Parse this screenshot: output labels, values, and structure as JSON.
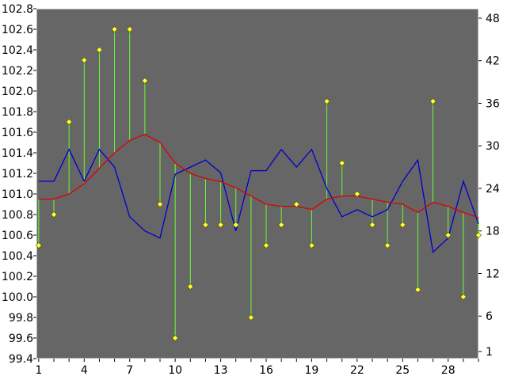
{
  "chart_data": {
    "type": "line",
    "title": "",
    "xlabel": "",
    "ylabel": "",
    "background_color": "#666666",
    "plot_border_color": "#ffffff",
    "grid": false,
    "legend": "none",
    "x": [
      1,
      2,
      3,
      4,
      5,
      6,
      7,
      8,
      9,
      10,
      11,
      12,
      13,
      14,
      15,
      16,
      17,
      18,
      19,
      20,
      21,
      22,
      23,
      24,
      25,
      26,
      27,
      28,
      29,
      30
    ],
    "x_tick_labels": [
      "1",
      "4",
      "7",
      "10",
      "13",
      "16",
      "19",
      "22",
      "25",
      "28"
    ],
    "x_tick_values": [
      1,
      4,
      7,
      10,
      13,
      16,
      19,
      22,
      25,
      28
    ],
    "xlim": [
      0.85,
      30
    ],
    "left_axis": {
      "ylim": [
        99.4,
        102.8
      ],
      "tick_labels": [
        "99.4",
        "99.6",
        "99.8",
        "100.0",
        "100.2",
        "100.4",
        "100.6",
        "100.8",
        "101.0",
        "101.2",
        "101.4",
        "101.6",
        "101.8",
        "102.0",
        "102.2",
        "102.4",
        "102.6",
        "102.8"
      ],
      "tick_values": [
        99.4,
        99.6,
        99.8,
        100.0,
        100.2,
        100.4,
        100.6,
        100.8,
        101.0,
        101.2,
        101.4,
        101.6,
        101.8,
        102.0,
        102.2,
        102.4,
        102.6,
        102.8
      ]
    },
    "right_axis": {
      "ylim": [
        0,
        49.333
      ],
      "tick_labels": [
        "1",
        "6",
        "12",
        "18",
        "24",
        "30",
        "36",
        "42",
        "48"
      ],
      "tick_values": [
        1,
        6,
        12,
        18,
        24,
        30,
        36,
        42,
        48
      ]
    },
    "series": [
      {
        "type": "stem-markers",
        "axis": "left",
        "color": "#66ff33",
        "marker_color": "#ffff33",
        "values": [
          100.5,
          100.8,
          101.7,
          102.3,
          102.4,
          102.6,
          102.6,
          102.1,
          100.9,
          99.6,
          100.1,
          100.7,
          100.7,
          100.7,
          99.8,
          100.5,
          100.7,
          100.9,
          100.5,
          101.9,
          101.3,
          101.0,
          100.7,
          100.5,
          100.7,
          100.07,
          101.9,
          100.6,
          100.0,
          100.6
        ]
      },
      {
        "type": "line",
        "axis": "left",
        "color": "#dd0000",
        "values": [
          100.95,
          100.95,
          101.0,
          101.1,
          101.25,
          101.4,
          101.52,
          101.58,
          101.5,
          101.3,
          101.2,
          101.15,
          101.12,
          101.06,
          100.98,
          100.9,
          100.88,
          100.88,
          100.85,
          100.95,
          100.98,
          100.98,
          100.95,
          100.92,
          100.9,
          100.82,
          100.92,
          100.88,
          100.82,
          100.77
        ]
      },
      {
        "type": "line",
        "axis": "right",
        "color": "#0000cc",
        "values": [
          25,
          25,
          29.5,
          25,
          29.5,
          27,
          20,
          18,
          17,
          26,
          27,
          28,
          26.2,
          18,
          26.5,
          26.5,
          29.5,
          27,
          29.5,
          24,
          20,
          21,
          20,
          21,
          25,
          28,
          15,
          17,
          25,
          19
        ]
      }
    ]
  }
}
